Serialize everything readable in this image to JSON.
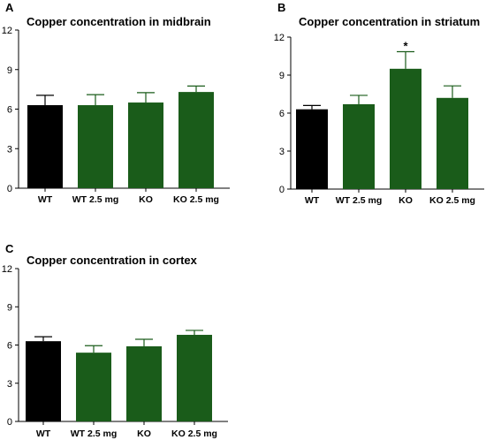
{
  "chart_data": [
    {
      "panel": "A",
      "type": "bar",
      "title": "Copper concentration in midbrain",
      "categories": [
        "WT",
        "WT 2.5 mg",
        "KO",
        "KO 2.5 mg"
      ],
      "values": [
        6.3,
        6.3,
        6.5,
        7.3
      ],
      "error": [
        0.75,
        0.8,
        0.75,
        0.45
      ],
      "significance": [
        "",
        "",
        "",
        ""
      ],
      "colors": [
        "#000000",
        "#1a5c1a",
        "#1a5c1a",
        "#1a5c1a"
      ],
      "ylim": [
        0,
        12
      ],
      "yticks": [
        0,
        3,
        6,
        9,
        12
      ],
      "xlabel": "",
      "ylabel": "",
      "grid": false
    },
    {
      "panel": "B",
      "type": "bar",
      "title": "Copper concentration in striatum",
      "categories": [
        "WT",
        "WT 2.5 mg",
        "KO",
        "KO 2.5 mg"
      ],
      "values": [
        6.3,
        6.7,
        9.5,
        7.2
      ],
      "error": [
        0.3,
        0.7,
        1.35,
        0.95
      ],
      "significance": [
        "",
        "",
        "*",
        ""
      ],
      "colors": [
        "#000000",
        "#1a5c1a",
        "#1a5c1a",
        "#1a5c1a"
      ],
      "ylim": [
        0,
        12
      ],
      "yticks": [
        0,
        3,
        6,
        9,
        12
      ],
      "xlabel": "",
      "ylabel": "",
      "grid": false
    },
    {
      "panel": "C",
      "type": "bar",
      "title": "Copper concentration in cortex",
      "categories": [
        "WT",
        "WT 2.5 mg",
        "KO",
        "KO 2.5 mg"
      ],
      "values": [
        6.3,
        5.4,
        5.9,
        6.8
      ],
      "error": [
        0.35,
        0.55,
        0.55,
        0.35
      ],
      "significance": [
        "",
        "",
        "",
        ""
      ],
      "colors": [
        "#000000",
        "#1a5c1a",
        "#1a5c1a",
        "#1a5c1a"
      ],
      "ylim": [
        0,
        12
      ],
      "yticks": [
        0,
        3,
        6,
        9,
        12
      ],
      "xlabel": "",
      "ylabel": "",
      "grid": false
    }
  ]
}
